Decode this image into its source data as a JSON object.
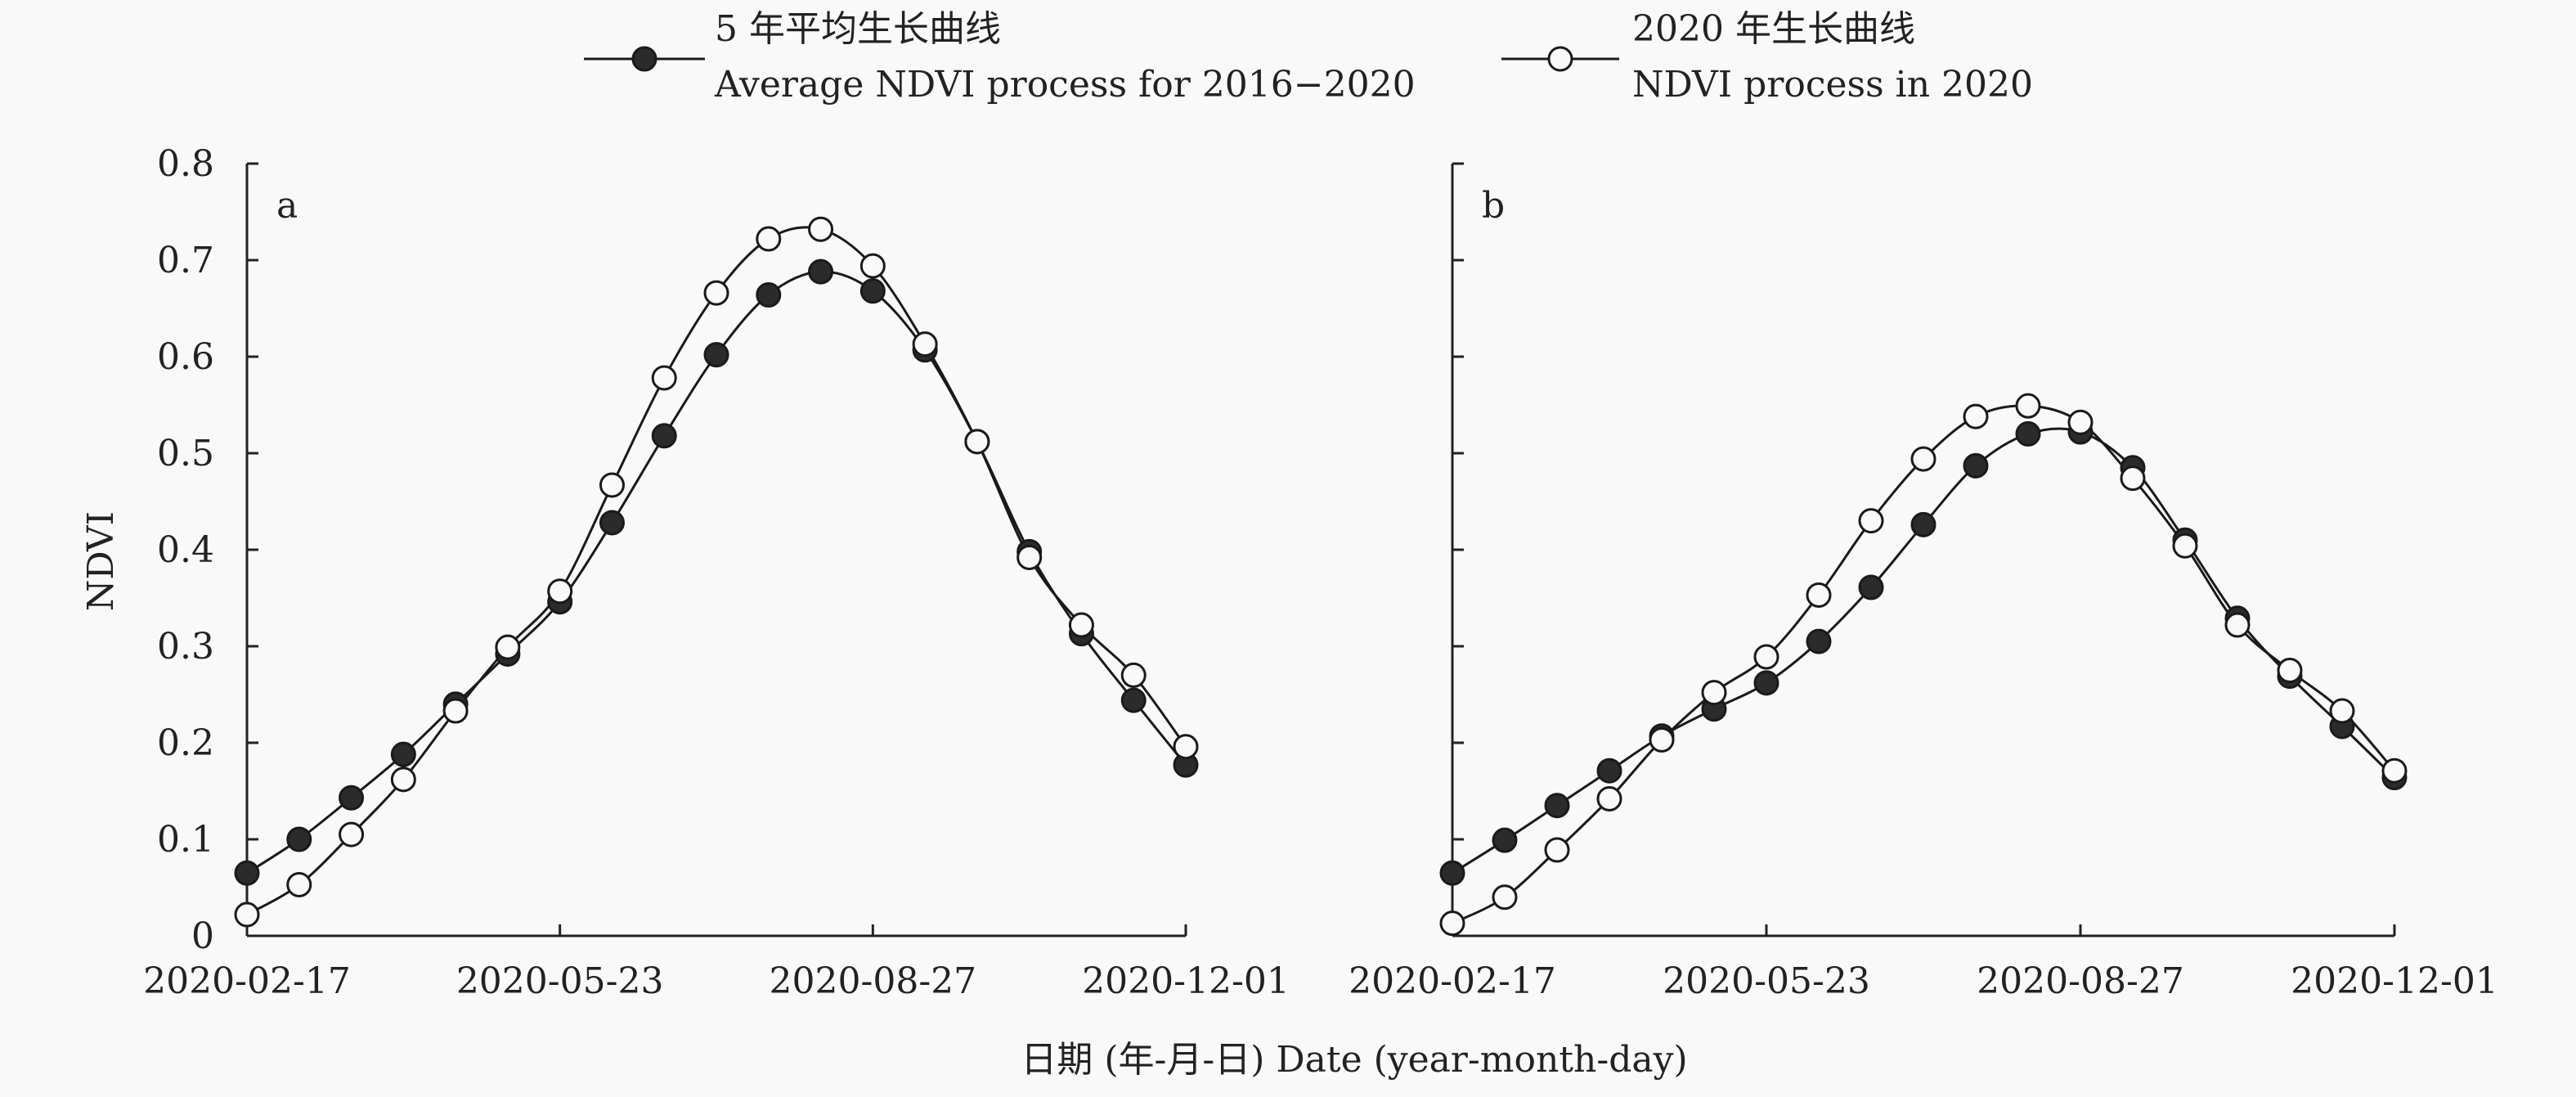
{
  "legend": {
    "series_a": {
      "cn": "5 年平均生长曲线",
      "en": "Average NDVI process for 2016−2020"
    },
    "series_b": {
      "cn": "2020 年生长曲线",
      "en": "NDVI process in 2020"
    }
  },
  "x_axis_label": "日期 (年-月-日) Date (year-month-day)",
  "y_axis_label": "NDVI",
  "colors": {
    "line": "#1a1a1a",
    "filled_marker": "#2b2b2b",
    "open_marker_fill": "#f9f9f9",
    "background": "#f9f9f9"
  },
  "chart_data": [
    {
      "type": "line",
      "panel_label": "a",
      "x_ticks": [
        "2020-02-17",
        "2020-05-23",
        "2020-08-27",
        "2020-12-01"
      ],
      "xlim": [
        0,
        18
      ],
      "ylim": [
        0,
        0.8
      ],
      "y_ticks": [
        "0",
        "0.1",
        "0.2",
        "0.3",
        "0.4",
        "0.5",
        "0.6",
        "0.7",
        "0.8"
      ],
      "grid": false,
      "legend_position": "top",
      "series": [
        {
          "name": "5 年平均生长曲线 Average NDVI process for 2016−2020",
          "marker": "filled",
          "x": [
            0,
            1,
            2,
            3,
            4,
            5,
            6,
            7,
            8,
            9,
            10,
            11,
            12,
            13,
            14,
            15,
            16,
            17,
            18
          ],
          "values": [
            0.065,
            0.1,
            0.143,
            0.188,
            0.24,
            0.292,
            0.346,
            0.428,
            0.518,
            0.602,
            0.664,
            0.688,
            0.668,
            0.607,
            0.512,
            0.398,
            0.313,
            0.244,
            0.177
          ]
        },
        {
          "name": "2020 年生长曲线 NDVI process in 2020",
          "marker": "open",
          "x": [
            0,
            1,
            2,
            3,
            4,
            5,
            6,
            7,
            8,
            9,
            10,
            11,
            12,
            13,
            14,
            15,
            16,
            17,
            18
          ],
          "values": [
            0.022,
            0.053,
            0.105,
            0.162,
            0.233,
            0.299,
            0.357,
            0.467,
            0.578,
            0.666,
            0.722,
            0.732,
            0.694,
            0.613,
            0.512,
            0.392,
            0.322,
            0.27,
            0.196
          ]
        }
      ]
    },
    {
      "type": "line",
      "panel_label": "b",
      "x_ticks": [
        "2020-02-17",
        "2020-05-23",
        "2020-08-27",
        "2020-12-01"
      ],
      "xlim": [
        0,
        18
      ],
      "ylim": [
        0,
        0.8
      ],
      "grid": false,
      "series": [
        {
          "name": "5 年平均生长曲线 Average NDVI process for 2016−2020",
          "marker": "filled",
          "x": [
            0,
            1,
            2,
            3,
            4,
            5,
            6,
            7,
            8,
            9,
            10,
            11,
            12,
            13,
            14,
            15,
            16,
            17,
            18
          ],
          "values": [
            0.065,
            0.099,
            0.135,
            0.171,
            0.207,
            0.235,
            0.262,
            0.305,
            0.361,
            0.426,
            0.487,
            0.52,
            0.522,
            0.485,
            0.41,
            0.329,
            0.269,
            0.217,
            0.164
          ]
        },
        {
          "name": "2020 年生长曲线 NDVI process in 2020",
          "marker": "open",
          "x": [
            0,
            1,
            2,
            3,
            4,
            5,
            6,
            7,
            8,
            9,
            10,
            11,
            12,
            13,
            14,
            15,
            16,
            17,
            18
          ],
          "values": [
            0.013,
            0.04,
            0.089,
            0.142,
            0.203,
            0.252,
            0.289,
            0.353,
            0.43,
            0.494,
            0.538,
            0.549,
            0.532,
            0.474,
            0.404,
            0.322,
            0.275,
            0.233,
            0.171
          ]
        }
      ]
    }
  ]
}
